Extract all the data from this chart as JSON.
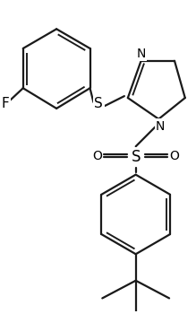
{
  "background_color": "#ffffff",
  "line_color": "#1a1a1a",
  "line_width": 1.6,
  "figsize": [
    2.19,
    3.5
  ],
  "dpi": 100,
  "xlim": [
    0,
    219
  ],
  "ylim": [
    0,
    350
  ]
}
